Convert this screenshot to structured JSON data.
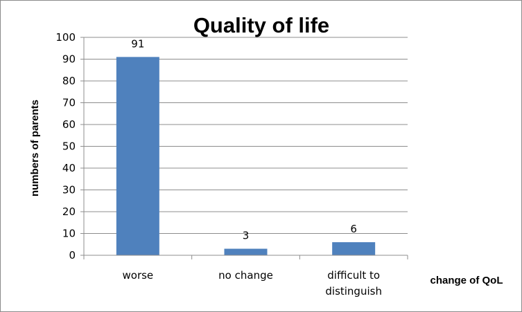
{
  "chart_data": {
    "type": "bar",
    "title": "Quality of life",
    "xlabel": "change of QoL",
    "ylabel": "numbers of parents",
    "categories": [
      [
        "worse"
      ],
      [
        "no change"
      ],
      [
        "difficult to",
        "distinguish"
      ]
    ],
    "values": [
      91,
      3,
      6
    ],
    "data_labels": [
      "91",
      "3",
      "6"
    ],
    "ylim": [
      0,
      100
    ],
    "yticks": [
      0,
      10,
      20,
      30,
      40,
      50,
      60,
      70,
      80,
      90,
      100
    ],
    "grid": true,
    "legend": "none",
    "bar_color": "#4F81BD",
    "grid_color": "#8C8C8C"
  }
}
